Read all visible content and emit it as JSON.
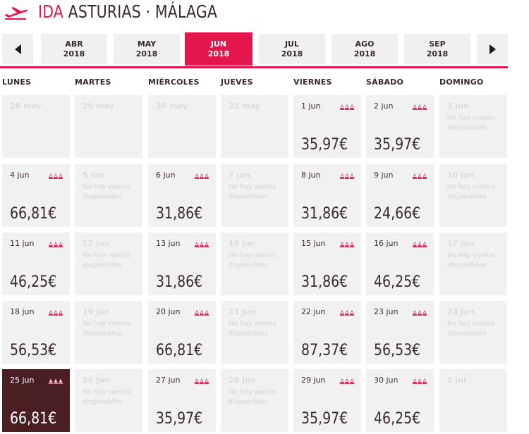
{
  "header": {
    "ida": "IDA",
    "route": "ASTURIAS · MÁLAGA"
  },
  "months": [
    {
      "m": "ABR",
      "y": "2018",
      "active": false
    },
    {
      "m": "MAY",
      "y": "2018",
      "active": false
    },
    {
      "m": "JUN",
      "y": "2018",
      "active": true
    },
    {
      "m": "JUL",
      "y": "2018",
      "active": false
    },
    {
      "m": "AGO",
      "y": "2018",
      "active": false
    },
    {
      "m": "SEP",
      "y": "2018",
      "active": false
    }
  ],
  "weekdays": [
    "LUNES",
    "MARTES",
    "MIÉRCOLES",
    "JUEVES",
    "VIERNES",
    "SÁBADO",
    "DOMINGO"
  ],
  "colors": {
    "accent": "#e3174c",
    "text": "#3b2a2d",
    "selected": "#4a1f24",
    "cell": "#f1f1f1"
  },
  "weeks": [
    [
      {
        "date": "28 may",
        "state": "out"
      },
      {
        "date": "29 may",
        "state": "out"
      },
      {
        "date": "30 may",
        "state": "out"
      },
      {
        "date": "31 may",
        "state": "out"
      },
      {
        "date": "1 jun",
        "state": "avail",
        "price": "35,97€"
      },
      {
        "date": "2 jun",
        "state": "avail",
        "price": "35,97€"
      },
      {
        "date": "3 jun",
        "state": "none",
        "note": "No hay vuelos disponibles"
      }
    ],
    [
      {
        "date": "4 jun",
        "state": "avail",
        "price": "66,81€"
      },
      {
        "date": "5 jun",
        "state": "none",
        "note": "No hay vuelos disponibles"
      },
      {
        "date": "6 jun",
        "state": "avail",
        "price": "31,86€"
      },
      {
        "date": "7 jun",
        "state": "none",
        "note": "No hay vuelos disponibles"
      },
      {
        "date": "8 jun",
        "state": "avail",
        "price": "31,86€"
      },
      {
        "date": "9 jun",
        "state": "avail",
        "price": "24,66€"
      },
      {
        "date": "10 jun",
        "state": "none",
        "note": "No hay vuelos disponibles"
      }
    ],
    [
      {
        "date": "11 jun",
        "state": "avail",
        "price": "46,25€"
      },
      {
        "date": "12 jun",
        "state": "none",
        "note": "No hay vuelos disponibles"
      },
      {
        "date": "13 jun",
        "state": "avail",
        "price": "31,86€"
      },
      {
        "date": "14 jun",
        "state": "none",
        "note": "No hay vuelos disponibles"
      },
      {
        "date": "15 jun",
        "state": "avail",
        "price": "31,86€"
      },
      {
        "date": "16 jun",
        "state": "avail",
        "price": "46,25€"
      },
      {
        "date": "17 jun",
        "state": "none",
        "note": "No hay vuelos disponibles"
      }
    ],
    [
      {
        "date": "18 jun",
        "state": "avail",
        "price": "56,53€"
      },
      {
        "date": "19 jun",
        "state": "none",
        "note": "No hay vuelos disponibles"
      },
      {
        "date": "20 jun",
        "state": "avail",
        "price": "66,81€"
      },
      {
        "date": "21 jun",
        "state": "none",
        "note": "No hay vuelos disponibles"
      },
      {
        "date": "22 jun",
        "state": "avail",
        "price": "87,37€"
      },
      {
        "date": "23 jun",
        "state": "avail",
        "price": "56,53€"
      },
      {
        "date": "24 jun",
        "state": "none",
        "note": "No hay vuelos disponibles"
      }
    ],
    [
      {
        "date": "25 jun",
        "state": "selected",
        "price": "66,81€"
      },
      {
        "date": "26 jun",
        "state": "none",
        "note": "No hay vuelos disponibles"
      },
      {
        "date": "27 jun",
        "state": "avail",
        "price": "35,97€"
      },
      {
        "date": "28 jun",
        "state": "none",
        "note": "No hay vuelos disponibles"
      },
      {
        "date": "29 jun",
        "state": "avail",
        "price": "35,97€"
      },
      {
        "date": "30 jun",
        "state": "avail",
        "price": "46,25€"
      },
      {
        "date": "1 jul",
        "state": "out"
      }
    ]
  ]
}
